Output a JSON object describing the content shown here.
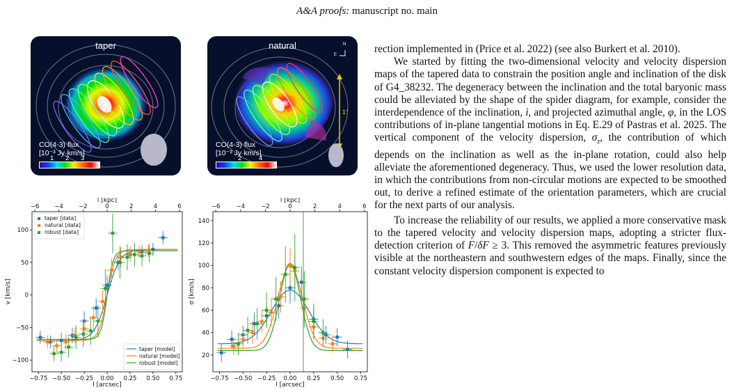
{
  "header": {
    "journal": "A&A proofs:",
    "rest": " manuscript no. main"
  },
  "maps": [
    {
      "title": "taper",
      "flux_label": "CO(4-3) flux",
      "flux_units": "[10⁻³ Jy·km/s]",
      "ticks": [
        "1",
        "2",
        "3"
      ]
    },
    {
      "title": "natural",
      "flux_label": "CO(4-3) flux",
      "flux_units": "[10⁻³ Jy·km/s]",
      "ticks": [
        "2",
        "4"
      ],
      "scale_label": "1″",
      "compass_n": "N",
      "compass_e": "E"
    }
  ],
  "colors": {
    "taper": "#1f77b4",
    "natural": "#ff7f0e",
    "robust": "#2ca02c"
  },
  "chart_data": [
    {
      "type": "scatter",
      "xlabel": "l [arcsec]",
      "x2label": "l [kpc]",
      "ylabel": "v [km/s]",
      "xlim": [
        -0.82,
        0.82
      ],
      "ylim": [
        -118,
        128
      ],
      "x2_ticks": [
        "−6",
        "−4",
        "−2",
        "0",
        "2",
        "4",
        "6"
      ],
      "xticks": [
        "−0.75",
        "−0.50",
        "−0.25",
        "0.00",
        "0.25",
        "0.50",
        "0.75"
      ],
      "yticks": [
        "−100",
        "−50",
        "0",
        "50",
        "100"
      ],
      "legend_data": [
        "taper [data]",
        "natural [data]",
        "robust [data]"
      ],
      "legend_model": [
        "taper [model]",
        "natural [model]",
        "robust [model]"
      ],
      "series": [
        {
          "name": "taper [data]",
          "x": [
            -0.73,
            -0.62,
            -0.5,
            -0.38,
            -0.25,
            -0.12,
            0.0,
            0.12,
            0.25,
            0.38,
            0.5,
            0.61
          ],
          "y": [
            -65,
            -72,
            -70,
            -62,
            -40,
            -20,
            15,
            50,
            62,
            66,
            70,
            88
          ],
          "err": [
            10,
            10,
            12,
            12,
            15,
            15,
            15,
            12,
            10,
            10,
            10,
            10
          ]
        },
        {
          "name": "natural [data]",
          "x": [
            -0.65,
            -0.55,
            -0.45,
            -0.35,
            -0.25,
            -0.15,
            -0.05,
            0.05,
            0.15,
            0.25,
            0.35,
            0.45
          ],
          "y": [
            -72,
            -78,
            -72,
            -62,
            -52,
            -35,
            -10,
            38,
            58,
            63,
            66,
            68
          ],
          "err": [
            10,
            10,
            12,
            12,
            15,
            18,
            18,
            18,
            15,
            12,
            10,
            10
          ]
        },
        {
          "name": "robust [data]",
          "x": [
            -0.58,
            -0.5,
            -0.42,
            -0.34,
            -0.26,
            -0.18,
            -0.1,
            -0.02,
            0.06,
            0.14,
            0.22,
            0.3,
            0.38,
            0.46
          ],
          "y": [
            -90,
            -88,
            -80,
            -65,
            -60,
            -55,
            -40,
            10,
            95,
            50,
            58,
            62,
            60,
            64
          ],
          "err": [
            12,
            14,
            16,
            18,
            20,
            22,
            25,
            30,
            30,
            25,
            20,
            18,
            16,
            14
          ]
        }
      ],
      "models": [
        {
          "name": "taper [model]",
          "vmax": 70,
          "scale": 0.14
        },
        {
          "name": "natural [model]",
          "vmax": 70,
          "scale": 0.09
        },
        {
          "name": "robust [model]",
          "vmax": 68,
          "scale": 0.065
        }
      ]
    },
    {
      "type": "scatter",
      "xlabel": "l [arcsec]",
      "x2label": "l [kpc]",
      "ylabel": "σ [km/s]",
      "xlim": [
        -0.82,
        0.82
      ],
      "ylim": [
        5,
        148
      ],
      "x2_ticks": [
        "−6",
        "−4",
        "−2",
        "0",
        "2",
        "4",
        "6"
      ],
      "xticks": [
        "−0.75",
        "−0.50",
        "−0.25",
        "0.00",
        "0.25",
        "0.50",
        "0.75"
      ],
      "yticks": [
        "20",
        "40",
        "60",
        "80",
        "100",
        "120",
        "140"
      ],
      "series": [
        {
          "name": "taper [data]",
          "x": [
            -0.73,
            -0.62,
            -0.5,
            -0.38,
            -0.25,
            -0.12,
            0.0,
            0.12,
            0.25,
            0.38,
            0.5,
            0.61
          ],
          "y": [
            22,
            34,
            38,
            48,
            55,
            64,
            80,
            85,
            52,
            38,
            36,
            25
          ],
          "err": [
            8,
            8,
            8,
            10,
            10,
            12,
            14,
            14,
            10,
            8,
            8,
            8
          ]
        },
        {
          "name": "natural [data]",
          "x": [
            -0.6,
            -0.5,
            -0.4,
            -0.3,
            -0.2,
            -0.1,
            0.0,
            0.05,
            0.15,
            0.25,
            0.35,
            0.45
          ],
          "y": [
            28,
            34,
            40,
            50,
            58,
            72,
            100,
            95,
            62,
            45,
            35,
            30
          ],
          "err": [
            8,
            8,
            10,
            10,
            12,
            14,
            16,
            16,
            12,
            10,
            8,
            8
          ]
        },
        {
          "name": "robust [data]",
          "x": [
            -0.55,
            -0.45,
            -0.35,
            -0.25,
            -0.15,
            -0.05,
            0.05,
            0.15,
            0.25,
            0.35
          ],
          "y": [
            30,
            42,
            48,
            60,
            70,
            92,
            98,
            70,
            50,
            40
          ],
          "err": [
            10,
            12,
            14,
            16,
            20,
            25,
            30,
            25,
            16,
            12
          ]
        }
      ],
      "models": [
        {
          "name": "taper [model]",
          "peak": 78,
          "base": 30,
          "width": 0.2
        },
        {
          "name": "natural [model]",
          "peak": 100,
          "base": 26,
          "width": 0.13
        },
        {
          "name": "robust [model]",
          "peak": 102,
          "base": 24,
          "width": 0.11
        }
      ]
    }
  ],
  "text": {
    "p1": "rection implemented in (Price et al. 2022) (see also Burkert et al. 2010).",
    "p2": "We started by fitting the two-dimensional velocity and velocity dispersion maps of the tapered data to constrain the position angle and inclination of the disk of G4_38232. The degeneracy between the inclination and the total baryonic mass could be alleviated by the shape of the spider diagram, for example, consider the interdependence of the inclination, i, and projected azimuthal angle, φ, in the LOS contributions of in-plane tangential motions in Eq. E.29 of Pastras et al. 2025. The vertical component of the velocity dispersion, σz, the contribution of which depends on the inclination as well as the in-plane rotation, could also help alleviate the aforementioned degeneracy. Thus, we used the lower resolution data, in which the contributions from non-circular motions are expected to be smoothed out, to derive a refined estimate of the orientation parameters, which are crucial for the next parts of our analysis.",
    "p3": "To increase the reliability of our results, we applied a more conservative mask to the tapered velocity and velocity dispersion maps, adopting a stricter flux-detection criterion of F/δF ≥ 3. This removed the asymmetric features previously visible at the northeastern and southwestern edges of the maps. Finally, since the constant velocity dispersion component is expected to"
  }
}
